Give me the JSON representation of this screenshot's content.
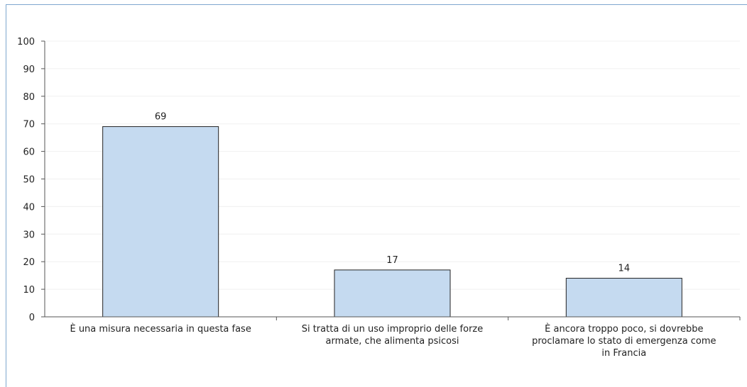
{
  "chart_data": {
    "type": "bar",
    "title": "",
    "xlabel": "",
    "ylabel": "",
    "ylim": [
      0,
      100
    ],
    "yticks": [
      0,
      10,
      20,
      30,
      40,
      50,
      60,
      70,
      80,
      90,
      100
    ],
    "grid": true,
    "categories": [
      [
        "È una misura necessaria in questa fase"
      ],
      [
        "Si tratta di un uso improprio delle forze",
        "armate, che alimenta psicosi"
      ],
      [
        "È ancora troppo poco, si dovrebbe",
        "proclamare lo stato di emergenza come",
        "in Francia"
      ]
    ],
    "values": [
      69,
      17,
      14
    ],
    "colors": {
      "bar": "#c5daf0",
      "bar_edge": "#222222",
      "axis": "#555555",
      "grid": "#f0f0f0",
      "frame": "#7fa7cf"
    }
  }
}
